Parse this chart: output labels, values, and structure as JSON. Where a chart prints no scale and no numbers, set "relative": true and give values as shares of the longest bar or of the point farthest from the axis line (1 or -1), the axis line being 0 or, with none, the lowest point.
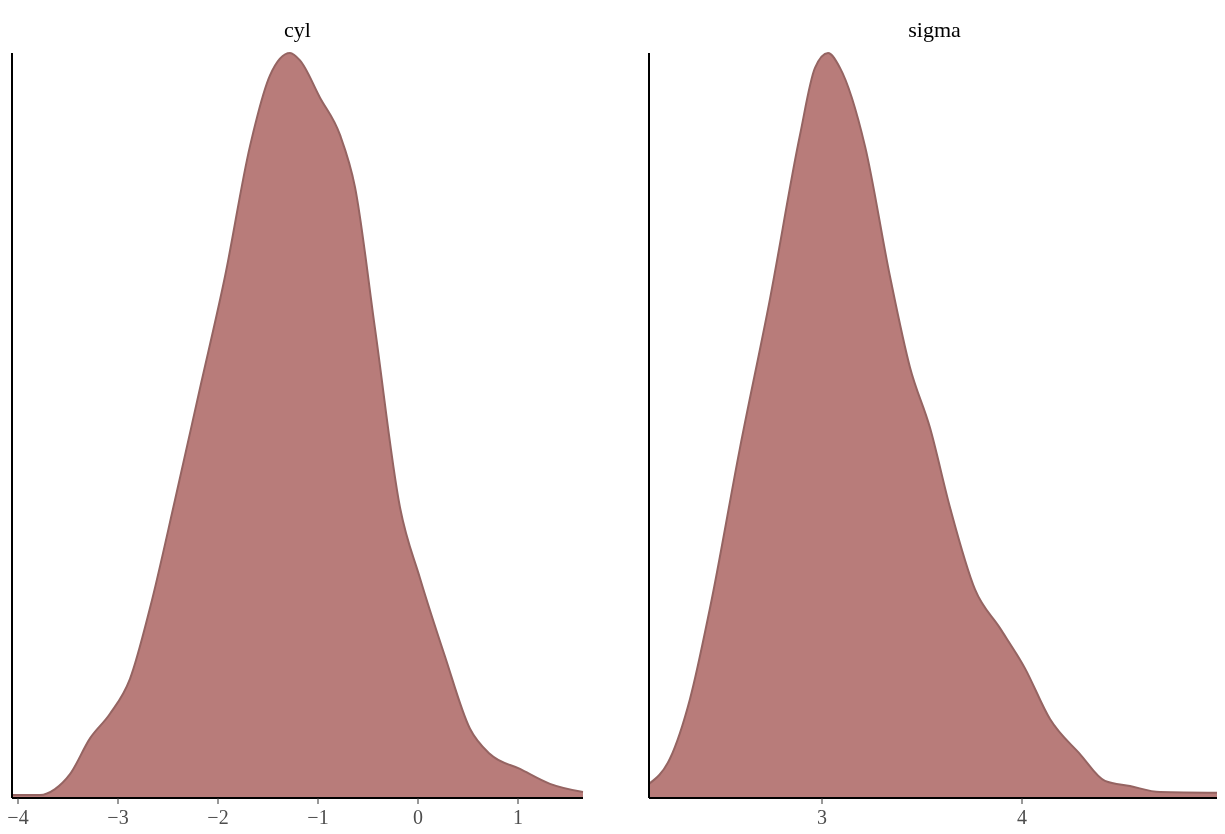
{
  "chart_data": [
    {
      "type": "area",
      "title": "cyl",
      "relative": true,
      "xlim": [
        -4.06,
        1.65
      ],
      "xticks": [
        {
          "value": -4,
          "label": "−4"
        },
        {
          "value": -3,
          "label": "−3"
        },
        {
          "value": -2,
          "label": "−2"
        },
        {
          "value": -1,
          "label": "−1"
        },
        0,
        1
      ],
      "grid": false,
      "tick_labels": "x",
      "series": [
        {
          "color": "#b87c7a",
          "x": [
            -4.06,
            -3.78,
            -3.63,
            -3.48,
            -3.28,
            -3.08,
            -2.88,
            -2.68,
            -2.43,
            -2.18,
            -1.93,
            -1.68,
            -1.48,
            -1.28,
            -1.18,
            -0.98,
            -0.78,
            -0.63,
            -0.43,
            -0.18,
            0.02,
            0.27,
            0.52,
            0.72,
            1.02,
            1.32,
            1.65
          ],
          "values": [
            0.004,
            0.004,
            0.012,
            0.032,
            0.08,
            0.113,
            0.16,
            0.255,
            0.4,
            0.55,
            0.7,
            0.875,
            0.97,
            1,
            0.99,
            0.94,
            0.89,
            0.82,
            0.63,
            0.39,
            0.295,
            0.19,
            0.093,
            0.059,
            0.039,
            0.019,
            0.008
          ]
        }
      ]
    },
    {
      "type": "area",
      "title": "sigma",
      "relative": true,
      "xlim": [
        2.135,
        4.99
      ],
      "xticks": [
        3,
        4
      ],
      "grid": false,
      "tick_labels": "x",
      "series": [
        {
          "color": "#b87c7a",
          "x": [
            2.135,
            2.24,
            2.34,
            2.44,
            2.59,
            2.74,
            2.89,
            2.965,
            3.03,
            3.09,
            3.215,
            3.34,
            3.44,
            3.54,
            3.64,
            3.765,
            3.89,
            4.015,
            4.14,
            4.29,
            4.415,
            4.54,
            4.69,
            4.99
          ],
          "values": [
            0.019,
            0.053,
            0.133,
            0.255,
            0.47,
            0.67,
            0.89,
            0.98,
            1,
            0.98,
            0.875,
            0.7,
            0.578,
            0.497,
            0.39,
            0.28,
            0.228,
            0.174,
            0.106,
            0.059,
            0.023,
            0.016,
            0.008,
            0.007
          ]
        }
      ]
    }
  ]
}
